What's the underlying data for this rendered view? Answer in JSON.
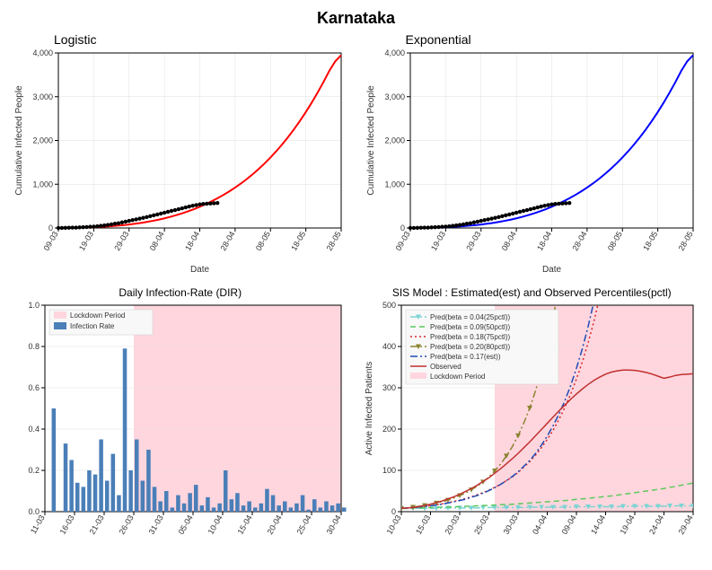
{
  "main_title": "Karnataka",
  "top_row": {
    "xlabel": "Date",
    "ylabel": "Cumulative Infected People",
    "yticks": [
      0,
      1000,
      2000,
      3000,
      4000
    ],
    "ytick_labels": [
      "0",
      "1,000",
      "2,000",
      "3,000",
      "4,000"
    ],
    "xticks": [
      "09-03",
      "19-03",
      "29-03",
      "08-04",
      "18-04",
      "28-04",
      "08-05",
      "18-05",
      "28-05"
    ],
    "xlim": [
      0,
      80
    ],
    "ylim": [
      0,
      4000
    ],
    "grid_color": "#e0e0e0",
    "background_color": "#ffffff",
    "axis_fontsize": 10,
    "tick_fontsize": 9,
    "observed": {
      "color": "#000000",
      "marker": "circle",
      "marker_size": 3,
      "values": [
        1,
        2,
        4,
        6,
        8,
        10,
        14,
        18,
        22,
        28,
        33,
        40,
        50,
        60,
        70,
        83,
        98,
        110,
        128,
        144,
        163,
        181,
        197,
        215,
        232,
        250,
        270,
        290,
        310,
        330,
        350,
        370,
        390,
        410,
        430,
        450,
        470,
        490,
        510,
        525,
        540,
        550,
        555,
        560,
        565,
        570
      ]
    }
  },
  "logistic": {
    "title": "Logistic",
    "line_color": "#ff0000",
    "line_width": 2,
    "values": [
      1,
      2,
      4,
      7,
      10,
      14,
      19,
      25,
      33,
      42,
      53,
      65,
      80,
      97,
      116,
      138,
      163,
      190,
      221,
      255,
      293,
      335,
      380,
      430,
      485,
      545,
      610,
      680,
      755,
      836,
      924,
      1018,
      1120,
      1230,
      1348,
      1475,
      1611,
      1757,
      1913,
      2080,
      2258,
      2448,
      2650,
      2865,
      3094,
      3337,
      3595,
      3810,
      3950
    ]
  },
  "exponential": {
    "title": "Exponential",
    "line_color": "#0000ff",
    "line_width": 2,
    "values": [
      1,
      2,
      4,
      7,
      10,
      14,
      19,
      25,
      33,
      42,
      53,
      65,
      80,
      97,
      116,
      138,
      163,
      190,
      221,
      255,
      293,
      335,
      380,
      430,
      485,
      545,
      610,
      680,
      755,
      836,
      924,
      1018,
      1120,
      1230,
      1348,
      1475,
      1611,
      1757,
      1913,
      2080,
      2258,
      2448,
      2650,
      2865,
      3094,
      3337,
      3595,
      3810,
      3950
    ]
  },
  "dir": {
    "title": "Daily Infection-Rate (DIR)",
    "ylabel": "",
    "yticks": [
      0,
      0.2,
      0.4,
      0.6,
      0.8,
      1.0
    ],
    "ytick_labels": [
      "0.0",
      "0.2",
      "0.4",
      "0.6",
      "0.8",
      "1.0"
    ],
    "xticks": [
      "11-03",
      "16-03",
      "21-03",
      "26-03",
      "31-03",
      "05-04",
      "10-04",
      "15-04",
      "20-04",
      "25-04",
      "30-04"
    ],
    "xlim": [
      0,
      50
    ],
    "ylim": [
      0,
      1.0
    ],
    "bar_color": "#4a7fb8",
    "lockdown_color": "#ffd6de",
    "lockdown_start": 15,
    "legend": [
      {
        "label": "Lockdown Period",
        "type": "rect",
        "color": "#ffd6de"
      },
      {
        "label": "Infection Rate",
        "type": "rect",
        "color": "#4a7fb8"
      }
    ],
    "values": [
      0.0,
      0.5,
      0.0,
      0.33,
      0.25,
      0.14,
      0.12,
      0.2,
      0.18,
      0.35,
      0.15,
      0.28,
      0.08,
      0.79,
      0.2,
      0.35,
      0.15,
      0.3,
      0.12,
      0.05,
      0.1,
      0.02,
      0.08,
      0.04,
      0.09,
      0.13,
      0.03,
      0.07,
      0.02,
      0.04,
      0.2,
      0.06,
      0.09,
      0.03,
      0.05,
      0.02,
      0.04,
      0.11,
      0.08,
      0.03,
      0.05,
      0.02,
      0.04,
      0.08,
      0.01,
      0.06,
      0.02,
      0.05,
      0.03,
      0.04,
      0.02
    ]
  },
  "sis": {
    "title": "SIS Model : Estimated(est) and Observed Percentiles(pctl)",
    "ylabel": "Active Infected Patients",
    "yticks": [
      0,
      100,
      200,
      300,
      400,
      500
    ],
    "ytick_labels": [
      "0",
      "100",
      "200",
      "300",
      "400",
      "500"
    ],
    "xticks": [
      "10-03",
      "15-03",
      "20-03",
      "25-03",
      "30-03",
      "04-04",
      "09-04",
      "14-04",
      "19-04",
      "24-04",
      "29-04"
    ],
    "xlim": [
      0,
      50
    ],
    "ylim": [
      0,
      500
    ],
    "lockdown_color": "#ffd6de",
    "lockdown_start": 16,
    "legend": [
      {
        "label": "Pred(beta = 0.04(25pctl))",
        "color": "#7cd4d4",
        "style": "dashdot",
        "marker": "triangle-down"
      },
      {
        "label": "Pred(beta = 0.09(50pctl))",
        "color": "#5bc95b",
        "style": "dash",
        "marker": "none"
      },
      {
        "label": "Pred(beta = 0.18(75pctl))",
        "color": "#d62728",
        "style": "dot",
        "marker": "none"
      },
      {
        "label": "Pred(beta = 0.20(80pctl))",
        "color": "#8b8330",
        "style": "dashdot",
        "marker": "triangle-down"
      },
      {
        "label": "Pred(beta = 0.17(est))",
        "color": "#1f4bb4",
        "style": "dashdot",
        "marker": "none"
      },
      {
        "label": "Observed",
        "color": "#c03030",
        "style": "solid",
        "marker": "none"
      },
      {
        "label": "Lockdown Period",
        "color": "#ffd6de",
        "style": "rect",
        "marker": "none"
      }
    ],
    "series": {
      "p25": {
        "color": "#7cd4d4",
        "style": "dashdot",
        "marker": "triangle-down",
        "values": [
          8,
          8,
          8,
          8,
          8,
          8,
          8,
          9,
          9,
          9,
          9,
          9,
          9,
          9,
          10,
          10,
          10,
          10,
          10,
          10,
          10,
          10,
          11,
          11,
          11,
          11,
          11,
          11,
          11,
          11,
          12,
          12,
          12,
          12,
          12,
          12,
          12,
          12,
          13,
          13,
          13,
          13,
          13,
          13,
          13,
          13,
          14,
          14,
          14,
          14,
          14
        ]
      },
      "p50": {
        "color": "#5bc95b",
        "style": "dash",
        "values": [
          8,
          8,
          9,
          9,
          9,
          10,
          10,
          11,
          11,
          12,
          12,
          13,
          13,
          14,
          15,
          15,
          16,
          17,
          17,
          18,
          19,
          20,
          21,
          22,
          23,
          24,
          25,
          26,
          27,
          28,
          30,
          31,
          32,
          34,
          35,
          37,
          38,
          40,
          42,
          44,
          46,
          48,
          50,
          52,
          54,
          56,
          59,
          61,
          64,
          67,
          69
        ]
      },
      "p75": {
        "color": "#d62728",
        "style": "dot",
        "values": [
          8,
          9,
          10,
          11,
          13,
          15,
          17,
          19,
          22,
          25,
          28,
          32,
          36,
          41,
          46,
          52,
          59,
          66,
          75,
          84,
          95,
          108,
          121,
          137,
          155,
          175,
          197,
          223,
          252,
          284,
          321,
          362,
          409,
          461,
          520,
          587,
          662,
          748,
          844,
          953,
          1075,
          1214,
          1370,
          1548,
          1747,
          1972,
          2226,
          2513,
          2838,
          3204,
          3618
        ]
      },
      "p80": {
        "color": "#8b8330",
        "style": "dashdot",
        "marker": "triangle-down",
        "values": [
          8,
          9,
          11,
          13,
          15,
          18,
          21,
          24,
          28,
          33,
          39,
          45,
          53,
          62,
          72,
          84,
          99,
          115,
          135,
          157,
          184,
          215,
          251,
          293,
          343,
          401,
          468,
          547,
          640,
          748,
          874,
          1021,
          1194,
          1395,
          1630,
          1905,
          2226,
          2601,
          3040,
          3553,
          4152,
          4853,
          5671,
          6628,
          7746,
          9052,
          10580,
          12365,
          14450,
          16887,
          19735
        ]
      },
      "est": {
        "color": "#1f4bb4",
        "style": "dashdot",
        "values": [
          8,
          9,
          10,
          11,
          13,
          14,
          16,
          18,
          21,
          24,
          27,
          30,
          35,
          39,
          45,
          51,
          58,
          66,
          75,
          85,
          96,
          110,
          124,
          141,
          161,
          183,
          208,
          236,
          268,
          305,
          347,
          394,
          448,
          509,
          578,
          657,
          747,
          849,
          965,
          1097,
          1247,
          1418,
          1612,
          1832,
          2082,
          2367,
          2690,
          3058,
          3476,
          3951,
          4491
        ]
      },
      "obs": {
        "color": "#c03030",
        "style": "solid",
        "values": [
          8,
          9,
          10,
          12,
          15,
          18,
          22,
          26,
          31,
          36,
          42,
          49,
          56,
          64,
          73,
          82,
          93,
          104,
          116,
          128,
          141,
          155,
          169,
          184,
          199,
          214,
          229,
          244,
          258,
          272,
          285,
          297,
          308,
          318,
          326,
          333,
          338,
          341,
          343,
          343,
          342,
          340,
          337,
          333,
          328,
          323,
          326,
          330,
          332,
          333,
          334
        ]
      }
    }
  }
}
